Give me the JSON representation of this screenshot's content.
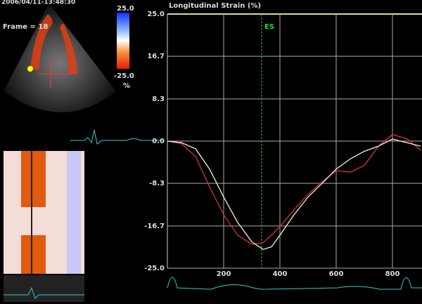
{
  "header": {
    "timestamp": "2006/04/11-13:48:30",
    "frame": "Frame = 18"
  },
  "colorbar": {
    "max": "25.0",
    "min": "-25.0",
    "unit": "%"
  },
  "chart_data": {
    "type": "line",
    "title": "Longitudinal Strain (%)",
    "x": [
      0,
      50,
      100,
      150,
      200,
      250,
      300,
      340,
      370,
      400,
      450,
      500,
      550,
      600,
      650,
      700,
      750,
      800,
      850,
      900
    ],
    "series": [
      {
        "name": null,
        "color": "#e0302a",
        "values": [
          0,
          -0.5,
          -3,
          -9,
          -14.5,
          -18.5,
          -20.3,
          -20,
          -18.5,
          -16.8,
          -13.5,
          -10.5,
          -8,
          -5.8,
          -6.1,
          -4.8,
          -1,
          1.3,
          0.5,
          -1.8
        ]
      },
      {
        "name": null,
        "color": "#f0f0e0",
        "values": [
          0,
          -0.3,
          -1.5,
          -5.5,
          -11,
          -16,
          -19.8,
          -21.3,
          -20.8,
          -18.5,
          -14.5,
          -11,
          -8.3,
          -5.5,
          -3.5,
          -2,
          -1,
          0.4,
          -0.3,
          -1
        ]
      }
    ],
    "xlim": [
      0,
      905
    ],
    "xticks": [
      200,
      400,
      600,
      800
    ],
    "ylim": [
      -25,
      25
    ],
    "yticks": [
      {
        "value": -25,
        "label": "-25.0"
      },
      {
        "value": -16.7,
        "label": "-16.7"
      },
      {
        "value": -8.3,
        "label": "-8.3"
      },
      {
        "value": 0,
        "label": "0.0"
      },
      {
        "value": 8.3,
        "label": "8.3"
      },
      {
        "value": 16.7,
        "label": "16.7"
      },
      {
        "value": 25,
        "label": "25.0"
      }
    ],
    "grid": true,
    "event": {
      "x": 335,
      "label": "ES"
    }
  }
}
